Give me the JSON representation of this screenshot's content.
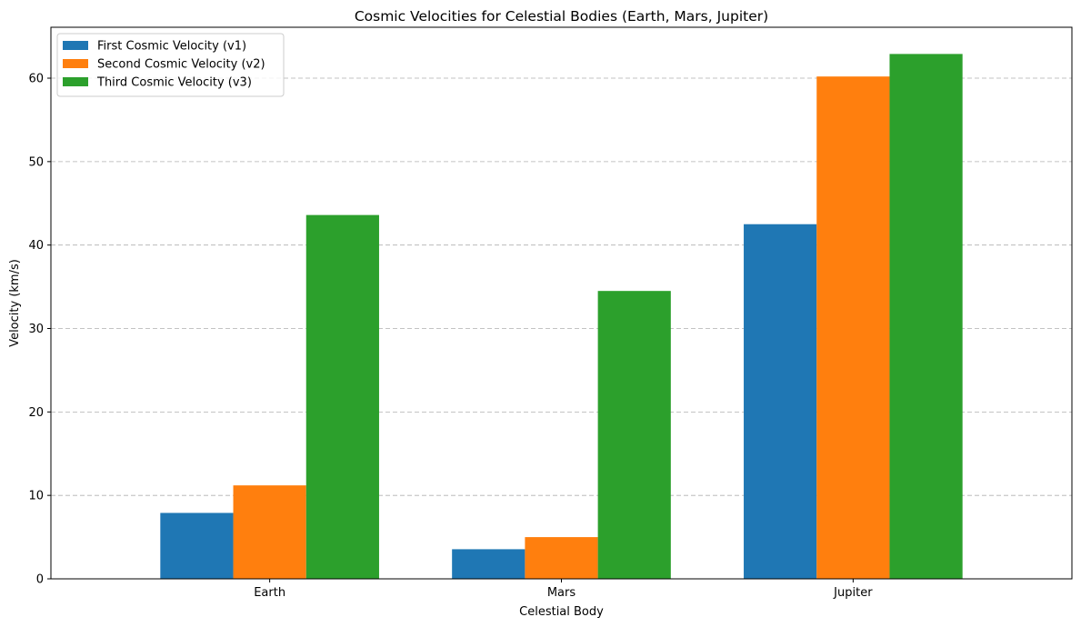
{
  "chart_data": {
    "type": "bar",
    "title": "Cosmic Velocities for Celestial Bodies (Earth, Mars, Jupiter)",
    "xlabel": "Celestial Body",
    "ylabel": "Velocity (km/s)",
    "categories": [
      "Earth",
      "Mars",
      "Jupiter"
    ],
    "series": [
      {
        "name": "First Cosmic Velocity (v1)",
        "color": "#1f77b4",
        "values": [
          7.9,
          3.55,
          42.5
        ]
      },
      {
        "name": "Second Cosmic Velocity (v2)",
        "color": "#ff7f0e",
        "values": [
          11.2,
          5.0,
          60.2
        ]
      },
      {
        "name": "Third Cosmic Velocity (v3)",
        "color": "#2ca02c",
        "values": [
          43.6,
          34.5,
          62.9
        ]
      }
    ],
    "ylim": [
      0,
      66.1
    ],
    "yticks": [
      0,
      10,
      20,
      30,
      40,
      50,
      60
    ],
    "grid": "y-dashed",
    "legend_position": "top-left"
  }
}
